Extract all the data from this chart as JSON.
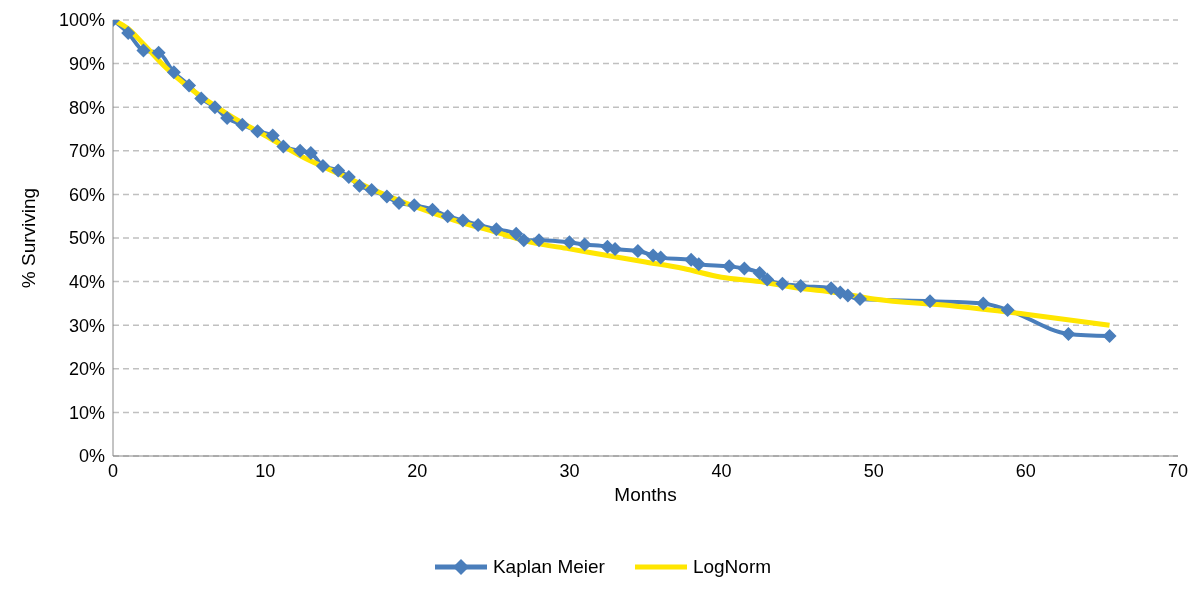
{
  "chart_data": {
    "type": "line",
    "xlabel": "Months",
    "ylabel": "% Surviving",
    "xlim": [
      0,
      70
    ],
    "xticks": [
      0,
      10,
      20,
      30,
      40,
      50,
      60,
      70
    ],
    "ylim": [
      0,
      100
    ],
    "yticks": [
      {
        "value": 0,
        "label": "0%"
      },
      {
        "value": 10,
        "label": "10%"
      },
      {
        "value": 20,
        "label": "20%"
      },
      {
        "value": 30,
        "label": "30%"
      },
      {
        "value": 40,
        "label": "40%"
      },
      {
        "value": 50,
        "label": "50%"
      },
      {
        "value": 60,
        "label": "60%"
      },
      {
        "value": 70,
        "label": "70%"
      },
      {
        "value": 80,
        "label": "80%"
      },
      {
        "value": 90,
        "label": "90%"
      },
      {
        "value": 100,
        "label": "100%"
      }
    ],
    "grid": "y",
    "legend": "bottom",
    "series": [
      {
        "name": "Kaplan Meier",
        "color": "#4a7ebb",
        "marker": "diamond",
        "x": [
          0,
          1,
          2,
          3,
          4,
          5,
          5.8,
          6.7,
          7.5,
          8.5,
          9.5,
          10.5,
          11.2,
          12.3,
          13,
          13.8,
          14.8,
          15.5,
          16.2,
          17,
          18,
          18.8,
          19.8,
          21,
          22,
          23,
          24,
          25.2,
          26.5,
          27,
          28,
          30,
          31,
          32.5,
          33,
          34.5,
          35.5,
          36,
          38,
          38.5,
          40.5,
          41.5,
          42.5,
          43,
          44,
          45.2,
          47.2,
          47.8,
          48.3,
          49.1,
          53.7,
          57.2,
          58.8,
          62.8,
          65.5
        ],
        "values": [
          100,
          97,
          93,
          92.5,
          88,
          85,
          82,
          80,
          77.5,
          76,
          74.5,
          73.5,
          71,
          70,
          69.5,
          66.5,
          65.5,
          64,
          62,
          61,
          59.5,
          58,
          57.5,
          56.5,
          55,
          54,
          53,
          52,
          51,
          49.5,
          49.5,
          49,
          48.5,
          48,
          47.5,
          47,
          46,
          45.5,
          45,
          44,
          43.5,
          43,
          42,
          40.5,
          39.5,
          39,
          38.5,
          37.5,
          36.8,
          36,
          35.5,
          35,
          33.5,
          28,
          27.5
        ]
      },
      {
        "name": "LogNorm",
        "color": "#ffe600",
        "marker": "none",
        "x": [
          0,
          1,
          2,
          3.5,
          5,
          7.5,
          10,
          12.5,
          15,
          17.5,
          20,
          22.5,
          25,
          27.5,
          30,
          32.5,
          35,
          37.5,
          40,
          42.5,
          45,
          47.5,
          50,
          55,
          60,
          65.5
        ],
        "values": [
          100,
          98,
          94.5,
          89,
          84.5,
          78.5,
          73.5,
          68.5,
          64.5,
          60.5,
          57,
          54,
          51.5,
          49,
          47.5,
          46,
          44.5,
          43,
          41,
          40,
          38.5,
          37.5,
          36,
          34.5,
          32.5,
          30
        ]
      }
    ]
  }
}
